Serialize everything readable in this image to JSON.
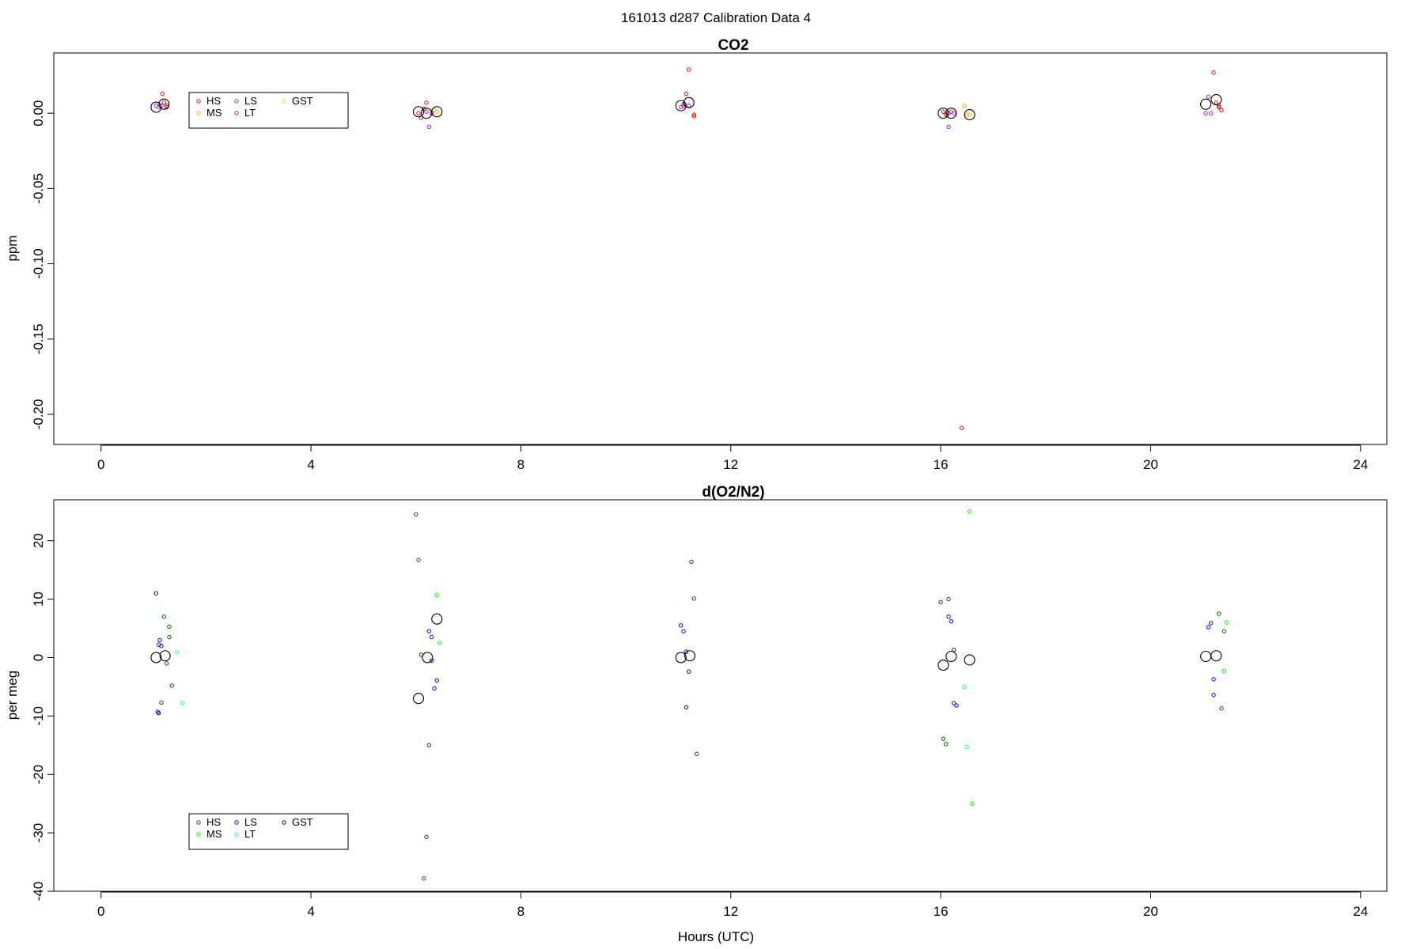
{
  "figure": {
    "title": "161013   d287   Calibration Data 4",
    "xlabel": "Hours (UTC)"
  },
  "chart_data": [
    {
      "type": "scatter",
      "title": "CO2",
      "ylabel": "ppm",
      "xlim": [
        -0.9,
        24.5
      ],
      "ylim": [
        -0.22,
        0.04
      ],
      "xticks": [
        0,
        4,
        8,
        12,
        16,
        20,
        24
      ],
      "yticks": [
        0.0,
        -0.05,
        -0.1,
        -0.15,
        -0.2
      ],
      "ytick_labels": [
        "0.00",
        "-0.05",
        "-0.10",
        "-0.15",
        "-0.20"
      ],
      "grid": false,
      "legend": {
        "placement": "top-left",
        "entries": [
          {
            "name": "HS",
            "color": "#ff0000"
          },
          {
            "name": "MS",
            "color": "#ffa500"
          },
          {
            "name": "LS",
            "color": "#a020f0"
          },
          {
            "name": "LT",
            "color": "#b22222"
          },
          {
            "name": "GST",
            "color": "#ffd700"
          }
        ]
      },
      "series": [
        {
          "name": "HS",
          "color": "#ff0000",
          "x": [
            1.17,
            1.2,
            1.25,
            6.05,
            6.1,
            6.15,
            6.2,
            11.1,
            11.15,
            11.2,
            11.3,
            11.3,
            16.05,
            16.1,
            16.15,
            16.4,
            21.2,
            21.25,
            21.3,
            21.3,
            21.35
          ],
          "y": [
            0.013,
            0.007,
            0.005,
            0.0,
            -0.003,
            0.003,
            0.007,
            0.005,
            0.013,
            0.029,
            -0.001,
            -0.002,
            0.001,
            -0.001,
            0.0,
            -0.209,
            0.027,
            0.007,
            0.005,
            0.004,
            0.002
          ]
        },
        {
          "name": "MS",
          "color": "#ffa500",
          "x": [
            6.35,
            6.4,
            16.45,
            16.5
          ],
          "y": [
            0.002,
            0.001,
            0.005,
            -0.001
          ]
        },
        {
          "name": "LS",
          "color": "#a020f0",
          "x": [
            1.05,
            1.1,
            1.15,
            6.2,
            6.25,
            6.3,
            11.05,
            11.1,
            11.2,
            16.15,
            16.2,
            16.25,
            21.05,
            21.1,
            21.15
          ],
          "y": [
            0.005,
            0.004,
            0.005,
            0.001,
            -0.009,
            0.0,
            0.004,
            0.006,
            0.005,
            -0.009,
            0.001,
            0.0,
            0.0,
            0.011,
            0.0
          ]
        },
        {
          "name": "LT",
          "color": "#b22222",
          "x": [
            1.25,
            16.1
          ],
          "y": [
            0.004,
            -0.001
          ]
        },
        {
          "name": "GST",
          "color": "#ffd700",
          "x": [
            6.4,
            16.55
          ],
          "y": [
            0.001,
            -0.001
          ]
        },
        {
          "name": "mean",
          "color": "#000000",
          "big": true,
          "x": [
            1.05,
            1.2,
            6.05,
            6.2,
            6.4,
            11.05,
            11.2,
            16.05,
            16.2,
            16.55,
            21.05,
            21.25
          ],
          "y": [
            0.004,
            0.006,
            0.001,
            0.0,
            0.001,
            0.005,
            0.007,
            0.0,
            0.0,
            -0.001,
            0.006,
            0.009
          ]
        }
      ]
    },
    {
      "type": "scatter",
      "title": "d(O2/N2)",
      "ylabel": "per meg",
      "xlim": [
        -0.9,
        24.5
      ],
      "ylim": [
        -40,
        27
      ],
      "xticks": [
        0,
        4,
        8,
        12,
        16,
        20,
        24
      ],
      "yticks": [
        20,
        10,
        0,
        -10,
        -20,
        -30,
        -40
      ],
      "ytick_labels": [
        "20",
        "10",
        "0",
        "-10",
        "-20",
        "-30",
        "-40"
      ],
      "grid": false,
      "legend": {
        "placement": "bottom-left",
        "entries": [
          {
            "name": "HS",
            "color": "#006400"
          },
          {
            "name": "MS",
            "color": "#00ff00"
          },
          {
            "name": "LS",
            "color": "#0000ff"
          },
          {
            "name": "LT",
            "color": "#00ffff"
          },
          {
            "name": "GST",
            "color": "#00008b"
          }
        ]
      },
      "series": [
        {
          "name": "HS",
          "color": "#006400",
          "x": [
            1.15,
            1.2,
            1.25,
            1.3,
            1.3,
            1.35,
            6.0,
            6.05,
            6.1,
            6.15,
            6.2,
            6.25,
            11.25,
            11.3,
            11.35,
            16.0,
            16.05,
            16.1,
            16.15,
            21.3,
            21.35,
            21.4
          ],
          "y": [
            -7.7,
            7.0,
            -1.0,
            3.5,
            5.3,
            -4.8,
            24.5,
            16.7,
            0.5,
            -37.8,
            -30.7,
            -15.0,
            16.4,
            10.1,
            -16.5,
            9.5,
            -13.9,
            -14.8,
            10.0,
            7.5,
            -8.7,
            4.5
          ]
        },
        {
          "name": "MS",
          "color": "#00ff00",
          "x": [
            6.4,
            6.45,
            16.55,
            16.6,
            21.4,
            21.45
          ],
          "y": [
            10.7,
            2.5,
            25.0,
            -25.0,
            -2.3,
            6.0
          ]
        },
        {
          "name": "LS",
          "color": "#0000ff",
          "x": [
            1.05,
            1.1,
            1.12,
            1.15,
            1.08,
            6.25,
            6.3,
            6.35,
            6.4,
            6.3,
            11.05,
            11.1,
            11.15,
            11.2,
            11.15,
            16.15,
            16.2,
            16.25,
            16.3,
            16.25,
            21.1,
            21.15,
            21.2,
            21.2
          ],
          "y": [
            11.0,
            2.2,
            3.0,
            2.0,
            -9.3,
            4.5,
            3.5,
            -5.3,
            -3.9,
            -0.5,
            5.5,
            4.5,
            1.0,
            -2.4,
            -8.5,
            7.0,
            6.2,
            -7.8,
            -8.2,
            1.3,
            5.2,
            5.9,
            -3.7,
            -6.4
          ]
        },
        {
          "name": "LT",
          "color": "#00ffff",
          "x": [
            1.45,
            1.55,
            16.45,
            16.5
          ],
          "y": [
            0.9,
            -7.8,
            -5.0,
            -15.3
          ]
        },
        {
          "name": "GST",
          "color": "#00008b",
          "x": [
            1.1
          ],
          "y": [
            -9.5
          ]
        },
        {
          "name": "mean",
          "color": "#000000",
          "big": true,
          "x": [
            1.05,
            1.22,
            6.05,
            6.22,
            6.4,
            11.05,
            11.22,
            16.05,
            16.2,
            16.55,
            21.05,
            21.25
          ],
          "y": [
            0.0,
            0.3,
            -7.0,
            0.0,
            6.6,
            0.0,
            0.3,
            -1.3,
            0.2,
            -0.4,
            0.2,
            0.3
          ]
        }
      ]
    }
  ]
}
